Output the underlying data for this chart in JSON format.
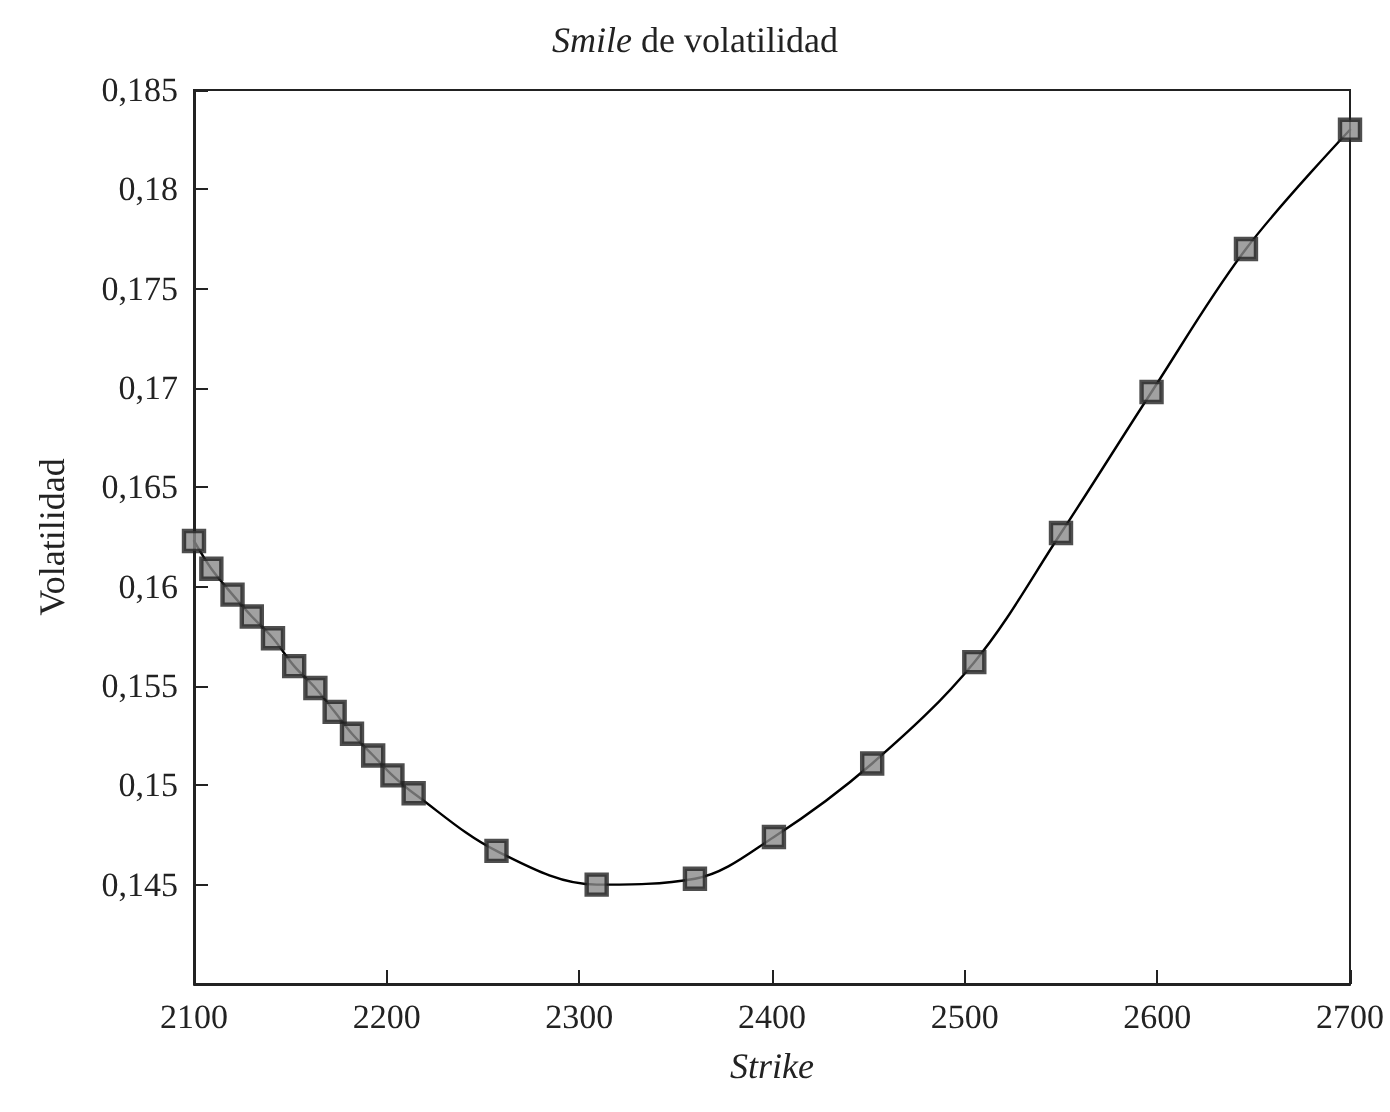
{
  "chart_data": {
    "type": "scatter",
    "title": "Smile de volatilidad",
    "xlabel": "Strike",
    "ylabel": "Volatilidad",
    "xlim": [
      2100,
      2700
    ],
    "xticks": [
      2100,
      2200,
      2300,
      2400,
      2500,
      2600,
      2700
    ],
    "ylim": [
      0.14,
      0.185
    ],
    "yticks": [
      {
        "value": 0.145,
        "label": "0,145"
      },
      {
        "value": 0.15,
        "label": "0,15"
      },
      {
        "value": 0.155,
        "label": "0,155"
      },
      {
        "value": 0.16,
        "label": "0,16"
      },
      {
        "value": 0.165,
        "label": "0,165"
      },
      {
        "value": 0.17,
        "label": "0,17"
      },
      {
        "value": 0.175,
        "label": "0,175"
      },
      {
        "value": 0.18,
        "label": "0,18"
      },
      {
        "value": 0.185,
        "label": "0,185"
      }
    ],
    "grid": false,
    "series": [
      {
        "type": "line",
        "color": "#000000",
        "marker": "none",
        "line_style": "solid",
        "x": [
          2100,
          2109,
          2120,
          2130,
          2141,
          2152,
          2163,
          2173,
          2182,
          2193,
          2203,
          2214,
          2257,
          2309,
          2360,
          2401,
          2452,
          2505,
          2550,
          2597,
          2646,
          2700
        ],
        "values": [
          0.1623,
          0.1609,
          0.1596,
          0.1585,
          0.1574,
          0.156,
          0.1549,
          0.1537,
          0.1526,
          0.1515,
          0.1505,
          0.1496,
          0.1467,
          0.145,
          0.1453,
          0.1474,
          0.1511,
          0.1562,
          0.1627,
          0.1698,
          0.177,
          0.183
        ]
      },
      {
        "color": "#8a8a8a",
        "marker": "square",
        "x": [
          2100,
          2109,
          2120,
          2130,
          2141,
          2152,
          2163,
          2173,
          2182,
          2193,
          2203,
          2214,
          2257,
          2309,
          2360,
          2401,
          2452,
          2505,
          2550,
          2597,
          2646,
          2700
        ],
        "values": [
          0.1623,
          0.1609,
          0.1596,
          0.1585,
          0.1574,
          0.156,
          0.1549,
          0.1537,
          0.1526,
          0.1515,
          0.1505,
          0.1496,
          0.1467,
          0.145,
          0.1453,
          0.1474,
          0.1511,
          0.1562,
          0.1627,
          0.1698,
          0.177,
          0.183
        ]
      }
    ]
  }
}
